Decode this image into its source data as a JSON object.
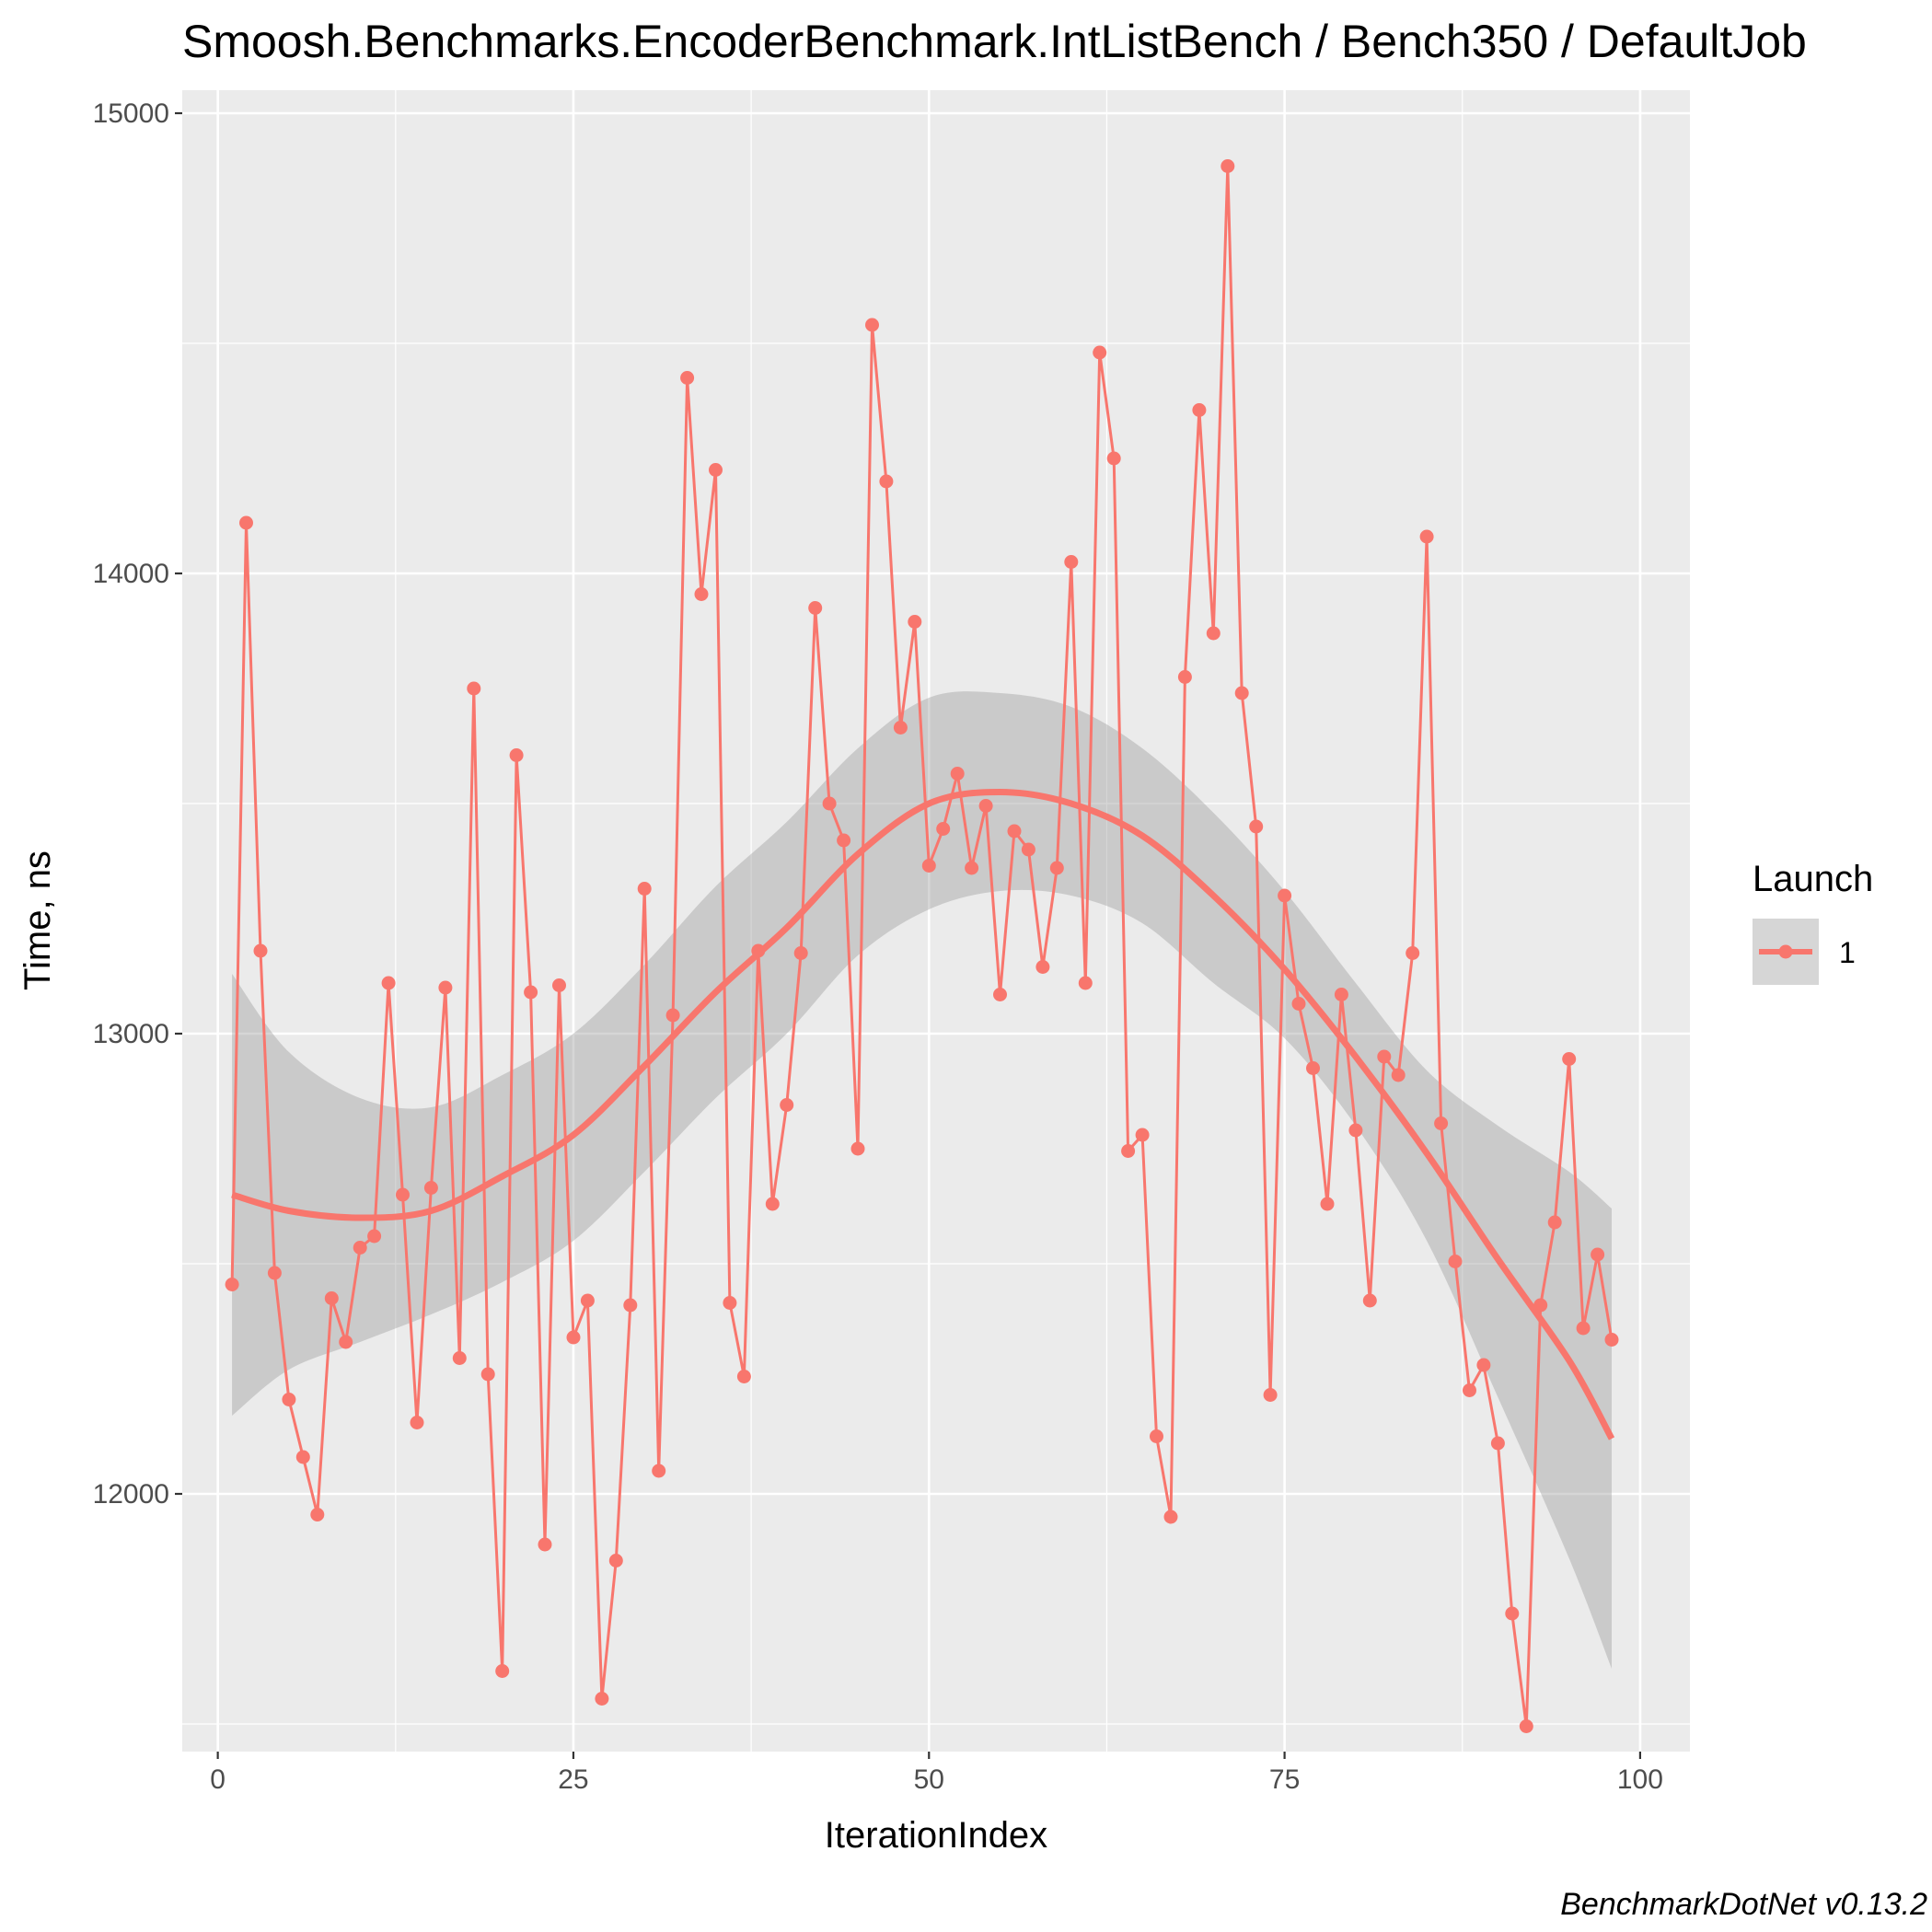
{
  "chart_data": {
    "type": "line",
    "title": "Smoosh.Benchmarks.EncoderBenchmark.IntListBench / Bench350 / DefaultJob",
    "xlabel": "IterationIndex",
    "ylabel": "Time, ns",
    "xlim": [
      -2.5,
      103.5
    ],
    "ylim": [
      11440,
      15050
    ],
    "x_ticks": [
      0,
      25,
      50,
      75,
      100
    ],
    "x_tick_labels": [
      "0",
      "25",
      "50",
      "75",
      "100"
    ],
    "y_ticks": [
      12000,
      13000,
      14000,
      15000
    ],
    "y_tick_labels": [
      "12000",
      "13000",
      "14000",
      "15000"
    ],
    "grid": true,
    "legend": {
      "title": "Launch",
      "placement": "right",
      "entries": [
        "1"
      ]
    },
    "caption": "BenchmarkDotNet v0.13.2",
    "colors": {
      "series": "#F8766D",
      "ribbon": "#999999",
      "panel": "#EBEBEB",
      "grid": "#FFFFFF"
    },
    "series": [
      {
        "name": "1",
        "x": [
          1,
          2,
          3,
          4,
          5,
          6,
          7,
          8,
          9,
          10,
          11,
          12,
          13,
          14,
          15,
          16,
          17,
          18,
          19,
          20,
          21,
          22,
          23,
          24,
          25,
          26,
          27,
          28,
          29,
          30,
          31,
          32,
          33,
          34,
          35,
          36,
          37,
          38,
          39,
          40,
          41,
          42,
          43,
          44,
          45,
          46,
          47,
          48,
          49,
          50,
          51,
          52,
          53,
          54,
          55,
          56,
          57,
          58,
          59,
          60,
          61,
          62,
          63,
          64,
          65,
          66,
          67,
          68,
          69,
          70,
          71,
          72,
          73,
          74,
          75,
          76,
          77,
          78,
          79,
          80,
          81,
          82,
          83,
          84,
          85,
          86,
          87,
          88,
          89,
          90,
          91,
          92,
          93,
          94,
          95,
          96,
          97,
          98
        ],
        "values": [
          12455,
          14110,
          13180,
          12480,
          12205,
          12080,
          11955,
          12425,
          12330,
          12535,
          12560,
          13110,
          12650,
          12155,
          12665,
          13100,
          12295,
          13750,
          12260,
          11615,
          13605,
          13090,
          11890,
          13105,
          12340,
          12420,
          11555,
          11855,
          12410,
          13315,
          12050,
          13040,
          14425,
          13955,
          14225,
          12415,
          12255,
          13180,
          12630,
          12845,
          13175,
          13925,
          13500,
          13420,
          12750,
          14540,
          14200,
          13665,
          13895,
          13365,
          13445,
          13565,
          13360,
          13495,
          13085,
          13440,
          13400,
          13145,
          13360,
          14025,
          13110,
          14480,
          14250,
          12745,
          12780,
          12125,
          11950,
          13775,
          14355,
          13870,
          14885,
          13740,
          13450,
          12215,
          13300,
          13065,
          12925,
          12630,
          13085,
          12790,
          12420,
          12950,
          12910,
          13175,
          14080,
          12805,
          12505,
          12225,
          12280,
          12110,
          11740,
          11495,
          12410,
          12590,
          12945,
          12360,
          12520,
          12335
        ]
      }
    ],
    "smooth": {
      "x": [
        1,
        5,
        10,
        15,
        20,
        25,
        30,
        35,
        40,
        45,
        50,
        55,
        60,
        65,
        70,
        75,
        80,
        85,
        90,
        95,
        98
      ],
      "fit": [
        12650,
        12615,
        12600,
        12615,
        12690,
        12780,
        12930,
        13090,
        13230,
        13390,
        13500,
        13525,
        13500,
        13430,
        13300,
        13140,
        12950,
        12740,
        12510,
        12290,
        12120
      ],
      "ymin": [
        12170,
        12270,
        12330,
        12390,
        12460,
        12550,
        12700,
        12860,
        13000,
        13170,
        13270,
        13310,
        13300,
        13240,
        13110,
        12990,
        12800,
        12550,
        12210,
        11860,
        11620
      ],
      "ymax": [
        13130,
        12960,
        12860,
        12840,
        12910,
        13000,
        13150,
        13320,
        13460,
        13620,
        13730,
        13740,
        13710,
        13620,
        13480,
        13310,
        13110,
        12920,
        12800,
        12700,
        12620
      ]
    }
  }
}
